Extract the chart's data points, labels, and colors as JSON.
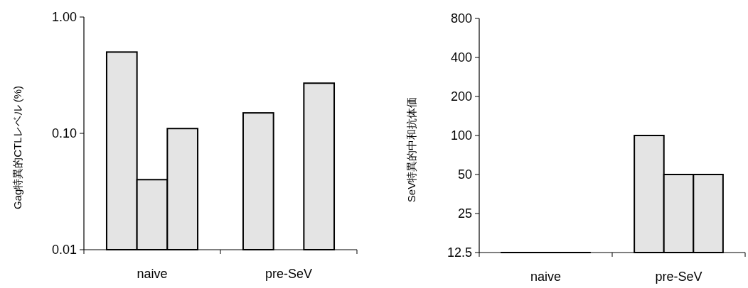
{
  "chart_data": [
    {
      "type": "bar",
      "ylabel": "Gag特異的CTLレベル (%)",
      "categories": [
        "naive",
        "pre-SeV"
      ],
      "log": true,
      "ylim": [
        0.01,
        1
      ],
      "yticks": [
        {
          "value": 0.01,
          "label": "0.01"
        },
        {
          "value": 0.1,
          "label": "0.10"
        },
        {
          "value": 1,
          "label": "1.00"
        }
      ],
      "series": [
        {
          "color": "#e4e4e4",
          "values": [
            0.5,
            0.15
          ]
        },
        {
          "color": "#e4e4e4",
          "values": [
            0.04,
            null
          ]
        },
        {
          "color": "#e4e4e4",
          "values": [
            0.11,
            0.27
          ]
        }
      ]
    },
    {
      "type": "bar",
      "ylabel": "SeV特異的中和抗体価",
      "categories": [
        "naive",
        "pre-SeV"
      ],
      "log": true,
      "ylim": [
        12.5,
        800
      ],
      "yticks": [
        12.5,
        25,
        50,
        100,
        200,
        400,
        800
      ],
      "series": [
        {
          "color": "#e4e4e4",
          "values": [
            12.5,
            100
          ]
        },
        {
          "color": "#e4e4e4",
          "values": [
            12.5,
            50
          ]
        },
        {
          "color": "#e4e4e4",
          "values": [
            12.5,
            50
          ]
        }
      ]
    }
  ]
}
